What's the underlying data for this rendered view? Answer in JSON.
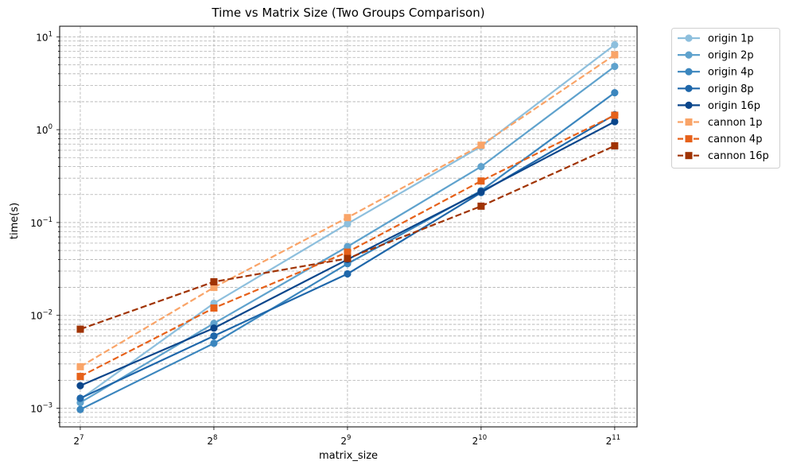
{
  "chart_data": {
    "type": "line",
    "title": "Time vs Matrix Size (Two Groups Comparison)",
    "xlabel": "matrix_size",
    "ylabel": "time(s)",
    "x_scale": "log2",
    "y_scale": "log10",
    "x": [
      128,
      256,
      512,
      1024,
      2048
    ],
    "x_tick_labels": [
      {
        "base": "2",
        "exp": "7"
      },
      {
        "base": "2",
        "exp": "8"
      },
      {
        "base": "2",
        "exp": "9"
      },
      {
        "base": "2",
        "exp": "10"
      },
      {
        "base": "2",
        "exp": "11"
      }
    ],
    "xlim": [
      115,
      2300
    ],
    "ylim": [
      0.00063,
      13
    ],
    "y_ticks": [
      0.001,
      0.01,
      0.1,
      1,
      10
    ],
    "y_tick_labels": [
      {
        "base": "10",
        "exp": "−3"
      },
      {
        "base": "10",
        "exp": "−2"
      },
      {
        "base": "10",
        "exp": "−1"
      },
      {
        "base": "10",
        "exp": "0"
      },
      {
        "base": "10",
        "exp": "1"
      }
    ],
    "grid": true,
    "legend_position": "outside-top-right",
    "series": [
      {
        "name": "origin 1p",
        "color": "#8dbfdd",
        "marker": "circle",
        "dash": false,
        "values": [
          0.00125,
          0.0135,
          0.097,
          0.66,
          8.2
        ]
      },
      {
        "name": "origin 2p",
        "color": "#5fa2cd",
        "marker": "circle",
        "dash": false,
        "values": [
          0.00115,
          0.0082,
          0.055,
          0.4,
          4.8
        ]
      },
      {
        "name": "origin 4p",
        "color": "#3b86be",
        "marker": "circle",
        "dash": false,
        "values": [
          0.00097,
          0.005,
          0.036,
          0.22,
          2.5
        ]
      },
      {
        "name": "origin 8p",
        "color": "#1f67aa",
        "marker": "circle",
        "dash": false,
        "values": [
          0.00128,
          0.006,
          0.028,
          0.21,
          1.45
        ]
      },
      {
        "name": "origin 16p",
        "color": "#0b468b",
        "marker": "circle",
        "dash": false,
        "values": [
          0.00175,
          0.0073,
          0.04,
          0.215,
          1.22
        ]
      },
      {
        "name": "cannon 1p",
        "color": "#f9a468",
        "marker": "square",
        "dash": true,
        "values": [
          0.0028,
          0.02,
          0.113,
          0.68,
          6.4
        ]
      },
      {
        "name": "cannon 4p",
        "color": "#e6611a",
        "marker": "square",
        "dash": true,
        "values": [
          0.0022,
          0.012,
          0.048,
          0.28,
          1.43
        ]
      },
      {
        "name": "cannon 16p",
        "color": "#a03303",
        "marker": "square",
        "dash": true,
        "values": [
          0.0071,
          0.023,
          0.041,
          0.15,
          0.67
        ]
      }
    ]
  }
}
